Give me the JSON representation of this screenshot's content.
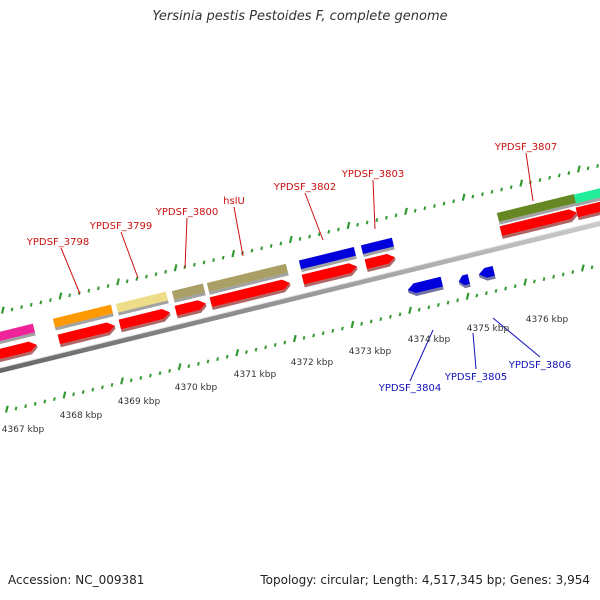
{
  "title": "Yersinia pestis Pestoides F, complete genome",
  "footer": {
    "accession": "Accession: NC_009381",
    "topology": "Topology: circular; Length: 4,517,345 bp; Genes: 3,954"
  },
  "colors": {
    "top_label": "#cc1111",
    "bottom_label": "#1111bb",
    "tick": "#339933",
    "backbone": "#888888",
    "cds": "#ff0000"
  },
  "kbp_labels": [
    "4367 kbp",
    "4368 kbp",
    "4369 kbp",
    "4370 kbp",
    "4371 kbp",
    "4372 kbp",
    "4373 kbp",
    "4374 kbp",
    "4375 kbp",
    "4376 kbp"
  ],
  "top_genes": [
    {
      "label": "YPDSF_3798",
      "color": "#ff9900"
    },
    {
      "label": "YPDSF_3799",
      "color": "#eedd88"
    },
    {
      "label": "YPDSF_3800",
      "color": "#aaa066"
    },
    {
      "label": "hslU",
      "color": "#aaa066"
    },
    {
      "label": "YPDSF_3802",
      "color": "#0000dd"
    },
    {
      "label": "YPDSF_3803",
      "color": "#0000dd"
    },
    {
      "label": "YPDSF_3807",
      "color": "#668822"
    }
  ],
  "bottom_genes": [
    {
      "label": "YPDSF_3804",
      "color": "#0000dd"
    },
    {
      "label": "YPDSF_3805",
      "color": "#0000dd"
    },
    {
      "label": "YPDSF_3806",
      "color": "#0000dd"
    }
  ],
  "edge_features": [
    {
      "name": "magenta-feature",
      "color": "#ee2299"
    },
    {
      "name": "teal-feature",
      "color": "#22ee99"
    }
  ]
}
